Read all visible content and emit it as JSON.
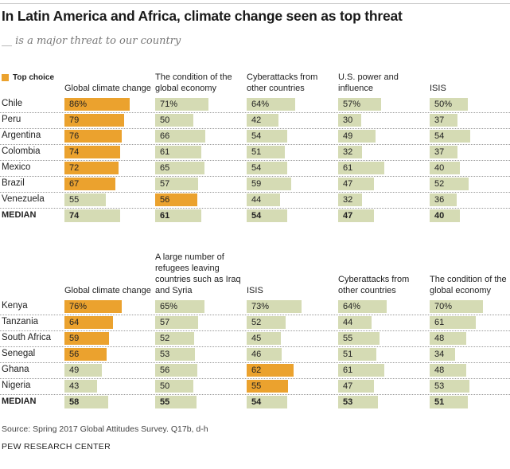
{
  "title": "In Latin America and Africa, climate change seen as top threat",
  "subtitle": "__ is a major threat to our country",
  "legend": {
    "label": "Top choice",
    "color": "#eba22e"
  },
  "colors": {
    "top": "#eba22e",
    "other": "#d5dbb4"
  },
  "source": "Source: Spring 2017 Global Attitudes Survey. Q17b, d-h",
  "org": "PEW RESEARCH CENTER",
  "chart_data": [
    {
      "type": "bar",
      "region": "Latin America",
      "categories": [
        "Global climate change",
        "The condition of the global economy",
        "Cyberattacks from other countries",
        "U.S. power and influence",
        "ISIS"
      ],
      "rows": [
        {
          "country": "Chile",
          "values": [
            86,
            71,
            64,
            57,
            50
          ],
          "top": [
            0
          ]
        },
        {
          "country": "Peru",
          "values": [
            79,
            50,
            42,
            30,
            37
          ],
          "top": [
            0
          ]
        },
        {
          "country": "Argentina",
          "values": [
            76,
            66,
            54,
            49,
            54
          ],
          "top": [
            0
          ]
        },
        {
          "country": "Colombia",
          "values": [
            74,
            61,
            51,
            32,
            37
          ],
          "top": [
            0
          ]
        },
        {
          "country": "Mexico",
          "values": [
            72,
            65,
            54,
            61,
            40
          ],
          "top": [
            0
          ]
        },
        {
          "country": "Brazil",
          "values": [
            67,
            57,
            59,
            47,
            52
          ],
          "top": [
            0
          ]
        },
        {
          "country": "Venezuela",
          "values": [
            55,
            56,
            44,
            32,
            36
          ],
          "top": [
            1
          ]
        }
      ],
      "median": {
        "label": "MEDIAN",
        "values": [
          74,
          61,
          54,
          47,
          40
        ]
      }
    },
    {
      "type": "bar",
      "region": "Africa",
      "categories": [
        "Global climate change",
        "A large number of refugees leaving countries such as Iraq and Syria",
        "ISIS",
        "Cyberattacks from other countries",
        "The condition of the global economy"
      ],
      "rows": [
        {
          "country": "Kenya",
          "values": [
            76,
            65,
            73,
            64,
            70
          ],
          "top": [
            0
          ]
        },
        {
          "country": "Tanzania",
          "values": [
            64,
            57,
            52,
            44,
            61
          ],
          "top": [
            0
          ]
        },
        {
          "country": "South Africa",
          "values": [
            59,
            52,
            45,
            55,
            48
          ],
          "top": [
            0
          ]
        },
        {
          "country": "Senegal",
          "values": [
            56,
            53,
            46,
            51,
            34
          ],
          "top": [
            0
          ]
        },
        {
          "country": "Ghana",
          "values": [
            49,
            56,
            62,
            61,
            48
          ],
          "top": [
            2
          ]
        },
        {
          "country": "Nigeria",
          "values": [
            43,
            50,
            55,
            47,
            53
          ],
          "top": [
            2
          ]
        }
      ],
      "median": {
        "label": "MEDIAN",
        "values": [
          58,
          55,
          54,
          53,
          51
        ]
      }
    }
  ]
}
